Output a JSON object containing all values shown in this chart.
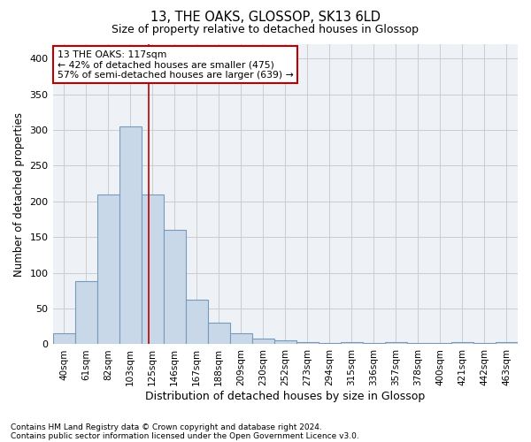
{
  "title1": "13, THE OAKS, GLOSSOP, SK13 6LD",
  "title2": "Size of property relative to detached houses in Glossop",
  "xlabel": "Distribution of detached houses by size in Glossop",
  "ylabel": "Number of detached properties",
  "bar_labels": [
    "40sqm",
    "61sqm",
    "82sqm",
    "103sqm",
    "125sqm",
    "146sqm",
    "167sqm",
    "188sqm",
    "209sqm",
    "230sqm",
    "252sqm",
    "273sqm",
    "294sqm",
    "315sqm",
    "336sqm",
    "357sqm",
    "378sqm",
    "400sqm",
    "421sqm",
    "442sqm",
    "463sqm"
  ],
  "bar_values": [
    15,
    88,
    210,
    305,
    210,
    160,
    63,
    30,
    15,
    8,
    5,
    3,
    2,
    3,
    2,
    3,
    2,
    2,
    3,
    2,
    3
  ],
  "bar_color": "#c8d8e8",
  "bar_edge_color": "#7799bb",
  "grid_color": "#cccccc",
  "background_color": "#eef2f7",
  "vline_x": 3.85,
  "vline_color": "#bb0000",
  "annotation_line1": "13 THE OAKS: 117sqm",
  "annotation_line2": "← 42% of detached houses are smaller (475)",
  "annotation_line3": "57% of semi-detached houses are larger (639) →",
  "annotation_box_color": "#ffffff",
  "annotation_box_edge": "#bb0000",
  "ylim": [
    0,
    420
  ],
  "yticks": [
    0,
    50,
    100,
    150,
    200,
    250,
    300,
    350,
    400
  ],
  "footnote1": "Contains HM Land Registry data © Crown copyright and database right 2024.",
  "footnote2": "Contains public sector information licensed under the Open Government Licence v3.0."
}
